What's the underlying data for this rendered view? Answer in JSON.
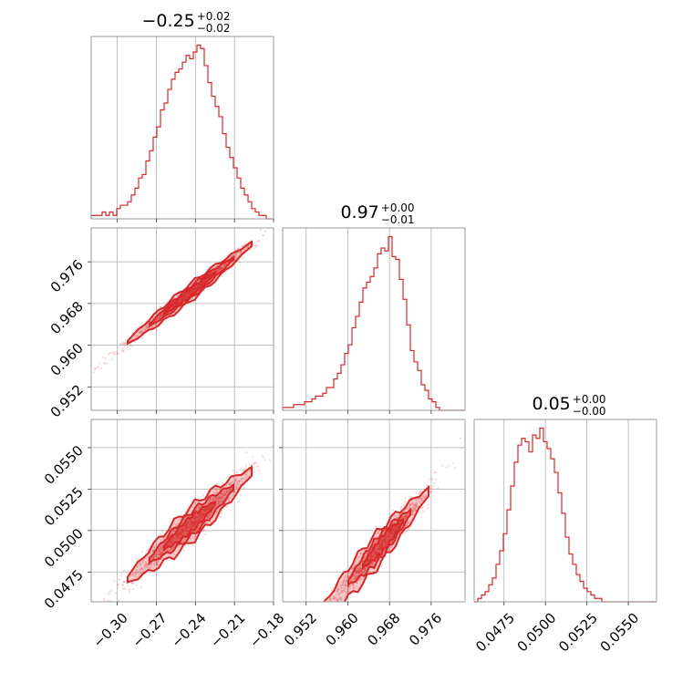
{
  "chart_data": {
    "type": "corner",
    "color": "#d62728",
    "parameters": [
      {
        "id": "p0",
        "range": [
          -0.32,
          -0.18
        ],
        "ticks": [
          -0.3,
          -0.27,
          -0.24,
          -0.21,
          -0.18
        ],
        "tick_labels": [
          "−0.30",
          "−0.27",
          "−0.24",
          "−0.21",
          "−0.18"
        ],
        "title": {
          "median": "−0.25",
          "plus": "+0.02",
          "minus": "−0.02"
        },
        "hist": {
          "start": -0.32,
          "step": 0.0028,
          "counts": [
            1,
            1,
            1,
            2,
            1,
            2,
            1,
            3,
            4,
            4,
            5,
            7,
            9,
            12,
            13,
            17,
            20,
            24,
            27,
            32,
            34,
            38,
            41,
            43,
            44,
            46,
            48,
            47,
            49,
            51,
            50,
            45,
            40,
            36,
            33,
            30,
            25,
            21,
            18,
            15,
            12,
            9,
            7,
            5,
            3,
            2,
            1,
            1,
            0,
            0
          ]
        }
      },
      {
        "id": "p1",
        "range": [
          0.9475,
          0.9825
        ],
        "ticks": [
          0.952,
          0.96,
          0.968,
          0.976
        ],
        "tick_labels": [
          "0.952",
          "0.960",
          "0.968",
          "0.976"
        ],
        "title": {
          "median": "0.97",
          "plus": "+0.00",
          "minus": "−0.01"
        },
        "hist": {
          "start": 0.9475,
          "step": 0.0007,
          "counts": [
            1,
            1,
            1,
            2,
            2,
            2,
            3,
            3,
            4,
            5,
            5,
            6,
            8,
            8,
            11,
            13,
            16,
            20,
            23,
            29,
            33,
            38,
            43,
            45,
            47,
            50,
            55,
            57,
            56,
            61,
            54,
            53,
            46,
            39,
            30,
            21,
            17,
            14,
            9,
            7,
            4,
            3,
            1,
            0,
            0,
            0,
            0,
            0,
            0,
            0
          ]
        }
      },
      {
        "id": "p2",
        "range": [
          0.0457,
          0.0567
        ],
        "ticks": [
          0.0475,
          0.05,
          0.0525,
          0.055
        ],
        "tick_labels": [
          "0.0475",
          "0.0500",
          "0.0525",
          "0.0550"
        ],
        "title": {
          "median": "0.05",
          "plus": "+0.00",
          "minus": "−0.00"
        },
        "hist": {
          "start": 0.0457,
          "step": 0.00022,
          "counts": [
            0,
            1,
            2,
            3,
            5,
            7,
            11,
            15,
            20,
            27,
            34,
            41,
            46,
            48,
            47,
            44,
            49,
            48,
            51,
            47,
            45,
            42,
            38,
            32,
            26,
            19,
            14,
            11,
            8,
            6,
            4,
            3,
            2,
            1,
            1,
            0,
            0,
            0,
            0,
            0,
            0,
            0,
            0,
            0,
            0,
            0,
            0,
            0,
            0,
            0
          ]
        }
      }
    ],
    "pairs": [
      {
        "x": "p0",
        "y": "p1",
        "slope": 0.198,
        "intercept": 1.0184,
        "sigma_perp": 0.0006,
        "scatter": 0.03
      },
      {
        "x": "p0",
        "y": "p2",
        "slope": 0.0685,
        "intercept": 0.06705,
        "sigma_perp": 0.00045,
        "scatter": 0.06
      },
      {
        "x": "p1",
        "y": "p2",
        "slope": 0.357,
        "intercept": -0.2959,
        "sigma_perp": 0.00045,
        "scatter": 0.06
      }
    ]
  }
}
